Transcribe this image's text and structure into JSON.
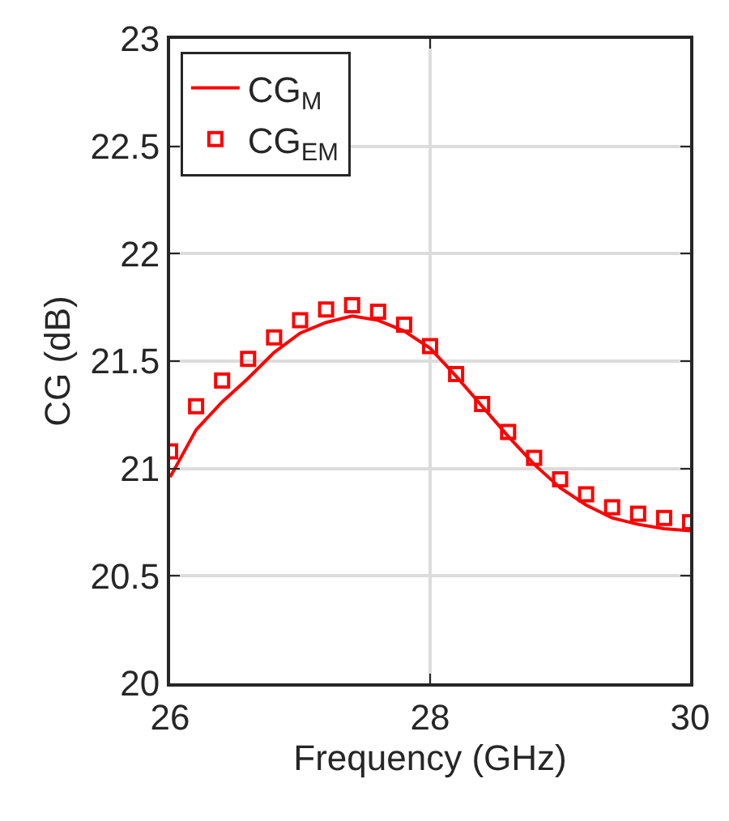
{
  "chart_data": {
    "type": "line",
    "xlabel": "Frequency (GHz)",
    "ylabel": "CG (dB)",
    "x": [
      26,
      26.2,
      26.4,
      26.6,
      26.8,
      27,
      27.2,
      27.4,
      27.6,
      27.8,
      28,
      28.2,
      28.4,
      28.6,
      28.8,
      29,
      29.2,
      29.4,
      29.6,
      29.8,
      30
    ],
    "series": [
      {
        "name": "CG$_{M}$",
        "color": "#ff0000",
        "marker": "none",
        "line_style": "solid",
        "values": [
          20.96,
          21.18,
          21.31,
          21.42,
          21.54,
          21.63,
          21.68,
          21.71,
          21.69,
          21.64,
          21.56,
          21.43,
          21.29,
          21.15,
          21.02,
          20.91,
          20.83,
          20.77,
          20.74,
          20.72,
          20.71
        ]
      },
      {
        "name": "CG$_{EM}$",
        "color": "#ff0000",
        "type": "scatter",
        "marker": "square",
        "values": [
          21.08,
          21.29,
          21.41,
          21.51,
          21.61,
          21.69,
          21.74,
          21.76,
          21.73,
          21.67,
          21.57,
          21.44,
          21.3,
          21.17,
          21.05,
          20.95,
          20.88,
          20.82,
          20.79,
          20.77,
          20.75
        ]
      }
    ],
    "xlim": [
      26,
      30
    ],
    "xticks": [
      26,
      28,
      30
    ],
    "ylim": [
      20,
      23
    ],
    "yticks": [
      20,
      20.5,
      21,
      21.5,
      22,
      22.5,
      23
    ],
    "grid": true,
    "legend": "top left"
  }
}
